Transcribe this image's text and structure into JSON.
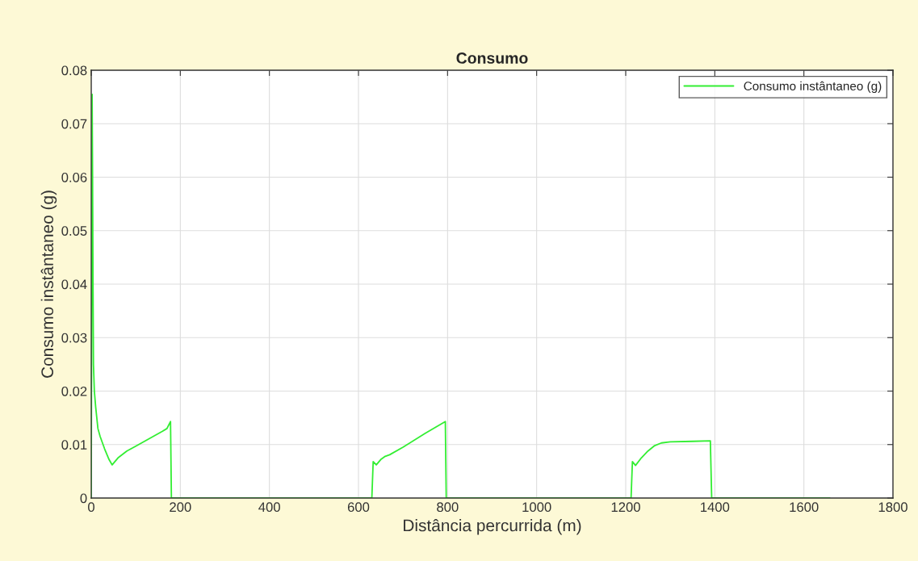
{
  "chart_data": {
    "type": "line",
    "title": "Consumo",
    "xlabel": "Distância percurrida (m)",
    "ylabel": "Consumo instântaneo (g)",
    "series": [
      {
        "name": "Consumo instântaneo (g)",
        "color": "#33ee33",
        "x": [
          0,
          2,
          3,
          4,
          5,
          7,
          10,
          15,
          20,
          30,
          40,
          47,
          60,
          80,
          100,
          130,
          160,
          170,
          178,
          180,
          400,
          630,
          633,
          640,
          650,
          660,
          670,
          700,
          750,
          795,
          797,
          1000,
          1212,
          1215,
          1222,
          1235,
          1250,
          1265,
          1280,
          1300,
          1350,
          1390,
          1393,
          1658
        ],
        "values": [
          0,
          0.0755,
          0.06,
          0.04,
          0.025,
          0.02,
          0.017,
          0.013,
          0.0115,
          0.0092,
          0.0072,
          0.0062,
          0.0075,
          0.0088,
          0.0097,
          0.0111,
          0.0125,
          0.013,
          0.0143,
          0,
          0,
          0,
          0.0068,
          0.0062,
          0.0072,
          0.0078,
          0.0081,
          0.0095,
          0.0121,
          0.0143,
          0,
          0,
          0,
          0.0068,
          0.0061,
          0.0075,
          0.0088,
          0.0098,
          0.0103,
          0.0105,
          0.0106,
          0.0107,
          0,
          0
        ]
      }
    ],
    "xlim": [
      0,
      1800
    ],
    "xticks": [
      0,
      200,
      400,
      600,
      800,
      1000,
      1200,
      1400,
      1600,
      1800
    ],
    "ylim": [
      0,
      0.08
    ],
    "yticks": [
      0,
      0.01,
      0.02,
      0.03,
      0.04,
      0.05,
      0.06,
      0.07,
      0.08
    ],
    "grid": true,
    "legend": "top right"
  }
}
